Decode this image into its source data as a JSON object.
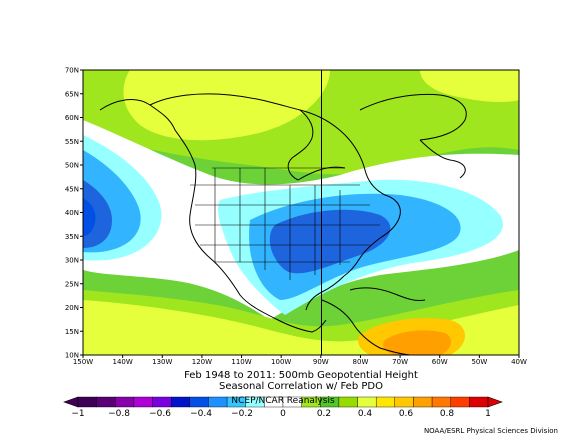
{
  "title": {
    "line1": "Feb 1948 to 2011: 500mb Geopotential Height",
    "line2": "Seasonal Correlation w/ Feb PDO"
  },
  "watermark": "NCEP/NCAR Reanalysis",
  "credit": "NOAA/ESRL Physical Sciences Division",
  "map": {
    "region": "North America",
    "lat_range": [
      10,
      70
    ],
    "lon_range": [
      -150,
      -40
    ],
    "lat_labels": [
      "70N",
      "65N",
      "60N",
      "55N",
      "50N",
      "45N",
      "40N",
      "35N",
      "30N",
      "25N",
      "20N",
      "15N",
      "10N"
    ],
    "lon_labels": [
      "150W",
      "140W",
      "130W",
      "120W",
      "110W",
      "100W",
      "90W",
      "80W",
      "70W",
      "60W",
      "50W",
      "40W"
    ],
    "reference_lines": {
      "meridian": "90W",
      "parallel": "50N"
    }
  },
  "colorbar": {
    "tick_labels": [
      "-1",
      "-0.8",
      "-0.6",
      "-0.4",
      "-0.2",
      "0",
      "0.2",
      "0.4",
      "0.6",
      "0.8",
      "1"
    ],
    "colors": [
      "#3d0055",
      "#5a0077",
      "#8800aa",
      "#b000d8",
      "#7a00e0",
      "#0014c8",
      "#0050e6",
      "#1e90ff",
      "#32c8ff",
      "#96ffff",
      "#ffffff",
      "#ffffff",
      "#a0e61e",
      "#50c828",
      "#96dc00",
      "#e6ff3c",
      "#ffe600",
      "#ffc800",
      "#ffa000",
      "#ff7800",
      "#ff3c00",
      "#dc0000"
    ],
    "color_names": [
      "dark-purple",
      "purple",
      "magenta",
      "violet",
      "indigo",
      "navy",
      "blue",
      "dodger-blue",
      "cyan",
      "light-cyan",
      "white",
      "white",
      "light-green",
      "green",
      "yellow-green",
      "yellow-lime",
      "yellow",
      "gold",
      "orange",
      "dark-orange",
      "red-orange",
      "red"
    ]
  },
  "field_colors": {
    "strong_negative": "#1e64dc",
    "negative": "#32b4ff",
    "weak_negative": "#96ffff",
    "neutral": "#ffffff",
    "weak_positive": "#a0e61e",
    "positive": "#6cd238",
    "moderate_positive": "#e6ff3c",
    "strong_positive": "#ffa000"
  }
}
